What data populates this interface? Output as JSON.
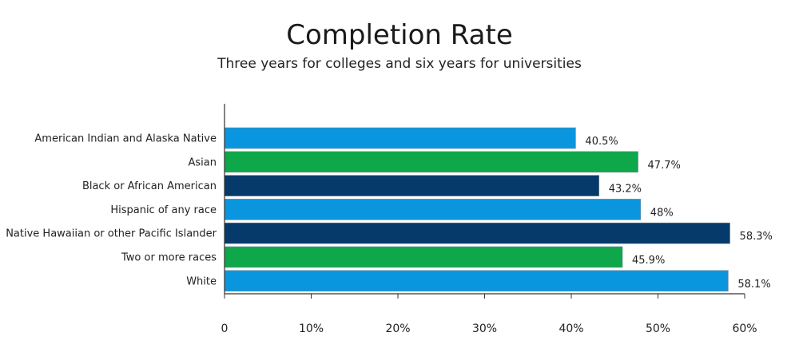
{
  "chart_data": {
    "type": "bar",
    "orientation": "horizontal",
    "title": "Completion Rate",
    "subtitle": "Three years for colleges and six years for universities",
    "categories": [
      "American Indian and Alaska Native",
      "Asian",
      "Black or African American",
      "Hispanic of any race",
      "Native Hawaiian or other Pacific Islander",
      "Two or more races",
      "White"
    ],
    "values": [
      40.5,
      47.7,
      43.2,
      48,
      58.3,
      45.9,
      58.1
    ],
    "value_labels": [
      "40.5%",
      "47.7%",
      "43.2%",
      "48%",
      "58.3%",
      "45.9%",
      "58.1%"
    ],
    "bar_colors": [
      "#0a96df",
      "#0ea84a",
      "#053a6b",
      "#0a96df",
      "#053a6b",
      "#0ea84a",
      "#0a96df"
    ],
    "xlim": [
      0,
      60
    ],
    "xticks": [
      "0",
      "10%",
      "20%",
      "30%",
      "40%",
      "50%",
      "60%"
    ],
    "xlabel": "",
    "ylabel": "",
    "grid": false,
    "legend": "none"
  }
}
